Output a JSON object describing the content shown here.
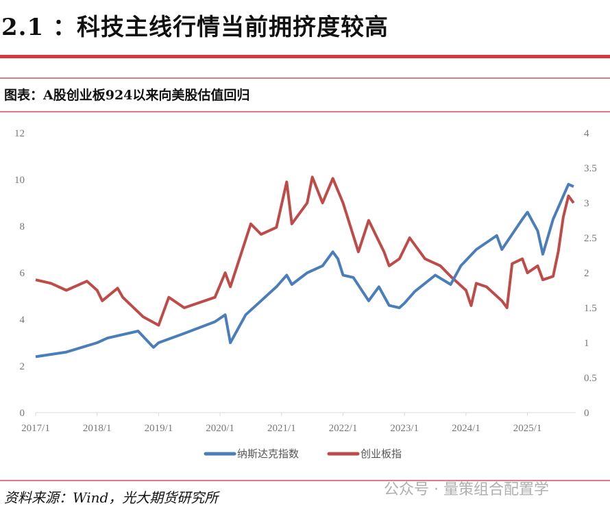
{
  "header": {
    "title": "2.1 ：科技主线行情当前拥挤度较高"
  },
  "caption": "图表：A股创业板924以来向美股估值回归",
  "source": "资料来源：Wind，光大期货研究所",
  "watermark": "公众号 · 量策组合配置学",
  "colors": {
    "nasdaq": "#4a7ebb",
    "chinext": "#be4b48",
    "rule": "#d9363e"
  },
  "chart_data": {
    "type": "line",
    "x_ticks": [
      "2017/1",
      "2018/1",
      "2019/1",
      "2020/1",
      "2021/1",
      "2022/1",
      "2023/1",
      "2024/1",
      "2025/1"
    ],
    "y_left": {
      "ticks": [
        "0",
        "2",
        "4",
        "6",
        "8",
        "10",
        "12"
      ],
      "range": [
        0,
        12
      ]
    },
    "y_right": {
      "ticks": [
        "0",
        "0.5",
        "1",
        "1.5",
        "2",
        "2.5",
        "3",
        "3.5",
        "4"
      ],
      "range": [
        0,
        4
      ]
    },
    "grid": false,
    "legend": "bottom",
    "series": [
      {
        "name": "纳斯达克指数",
        "axis": "left",
        "color": "#4a7ebb",
        "points": [
          [
            "2017-01",
            2.4
          ],
          [
            "2017-07",
            2.6
          ],
          [
            "2018-01",
            3.0
          ],
          [
            "2018-03",
            3.2
          ],
          [
            "2018-09",
            3.5
          ],
          [
            "2018-12",
            2.8
          ],
          [
            "2019-01",
            3.0
          ],
          [
            "2019-06",
            3.4
          ],
          [
            "2019-12",
            3.9
          ],
          [
            "2020-02",
            4.2
          ],
          [
            "2020-03",
            3.0
          ],
          [
            "2020-06",
            4.2
          ],
          [
            "2020-09",
            4.8
          ],
          [
            "2020-12",
            5.4
          ],
          [
            "2021-02",
            5.9
          ],
          [
            "2021-03",
            5.5
          ],
          [
            "2021-06",
            6.0
          ],
          [
            "2021-09",
            6.3
          ],
          [
            "2021-11",
            6.9
          ],
          [
            "2021-12",
            6.6
          ],
          [
            "2022-01",
            5.9
          ],
          [
            "2022-03",
            5.8
          ],
          [
            "2022-06",
            4.8
          ],
          [
            "2022-08",
            5.4
          ],
          [
            "2022-10",
            4.6
          ],
          [
            "2022-12",
            4.5
          ],
          [
            "2023-01",
            4.7
          ],
          [
            "2023-03",
            5.2
          ],
          [
            "2023-07",
            5.9
          ],
          [
            "2023-10",
            5.5
          ],
          [
            "2023-12",
            6.3
          ],
          [
            "2024-03",
            7.0
          ],
          [
            "2024-07",
            7.6
          ],
          [
            "2024-08",
            7.0
          ],
          [
            "2024-12",
            8.3
          ],
          [
            "2025-01",
            8.6
          ],
          [
            "2025-03",
            7.8
          ],
          [
            "2025-04",
            6.8
          ],
          [
            "2025-06",
            8.3
          ],
          [
            "2025-08",
            9.3
          ],
          [
            "2025-09",
            9.8
          ],
          [
            "2025-10",
            9.7
          ]
        ]
      },
      {
        "name": "创业板指",
        "axis": "right",
        "color": "#be4b48",
        "points": [
          [
            "2017-01",
            1.9
          ],
          [
            "2017-04",
            1.85
          ],
          [
            "2017-07",
            1.75
          ],
          [
            "2017-11",
            1.88
          ],
          [
            "2018-01",
            1.75
          ],
          [
            "2018-02",
            1.6
          ],
          [
            "2018-05",
            1.78
          ],
          [
            "2018-06",
            1.65
          ],
          [
            "2018-10",
            1.37
          ],
          [
            "2019-01",
            1.25
          ],
          [
            "2019-03",
            1.65
          ],
          [
            "2019-06",
            1.5
          ],
          [
            "2019-12",
            1.65
          ],
          [
            "2020-02",
            2.0
          ],
          [
            "2020-03",
            1.8
          ],
          [
            "2020-07",
            2.7
          ],
          [
            "2020-09",
            2.55
          ],
          [
            "2020-12",
            2.65
          ],
          [
            "2021-02",
            3.3
          ],
          [
            "2021-03",
            2.7
          ],
          [
            "2021-06",
            3.0
          ],
          [
            "2021-07",
            3.37
          ],
          [
            "2021-09",
            3.0
          ],
          [
            "2021-11",
            3.35
          ],
          [
            "2022-01",
            3.0
          ],
          [
            "2022-04",
            2.3
          ],
          [
            "2022-06",
            2.75
          ],
          [
            "2022-09",
            2.3
          ],
          [
            "2022-10",
            2.1
          ],
          [
            "2022-12",
            2.2
          ],
          [
            "2023-02",
            2.5
          ],
          [
            "2023-05",
            2.2
          ],
          [
            "2023-08",
            2.1
          ],
          [
            "2023-10",
            1.95
          ],
          [
            "2024-01",
            1.75
          ],
          [
            "2024-02",
            1.53
          ],
          [
            "2024-03",
            1.85
          ],
          [
            "2024-05",
            1.8
          ],
          [
            "2024-08",
            1.6
          ],
          [
            "2024-09",
            1.5
          ],
          [
            "2024-10",
            2.13
          ],
          [
            "2024-12",
            2.2
          ],
          [
            "2025-01",
            2.0
          ],
          [
            "2025-03",
            2.1
          ],
          [
            "2025-04",
            1.9
          ],
          [
            "2025-06",
            1.95
          ],
          [
            "2025-07",
            2.3
          ],
          [
            "2025-08",
            2.8
          ],
          [
            "2025-09",
            3.1
          ],
          [
            "2025-10",
            3.0
          ]
        ]
      }
    ]
  }
}
